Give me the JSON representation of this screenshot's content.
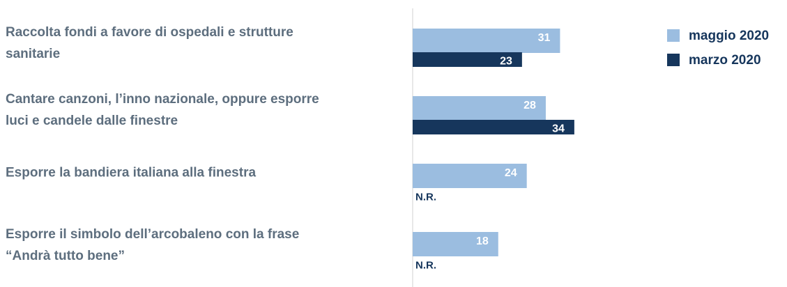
{
  "chart_data": {
    "type": "bar",
    "orientation": "horizontal",
    "categories": [
      "Raccolta fondi a favore di ospedali e strutture sanitarie",
      "Cantare canzoni, l’inno nazionale, oppure esporre luci e candele dalle finestre",
      "Esporre la bandiera italiana alla finestra",
      "Esporre il simbolo dell’arcobaleno con la frase “Andrà tutto bene”"
    ],
    "series": [
      {
        "name": "maggio 2020",
        "color": "#9bbde0",
        "values": [
          31,
          28,
          24,
          18
        ]
      },
      {
        "name": "marzo 2020",
        "color": "#16365c",
        "values": [
          23,
          34,
          null,
          null
        ],
        "value_labels": [
          "23",
          "34",
          "N.R.",
          "N.R."
        ]
      }
    ],
    "legend": "top-right"
  }
}
